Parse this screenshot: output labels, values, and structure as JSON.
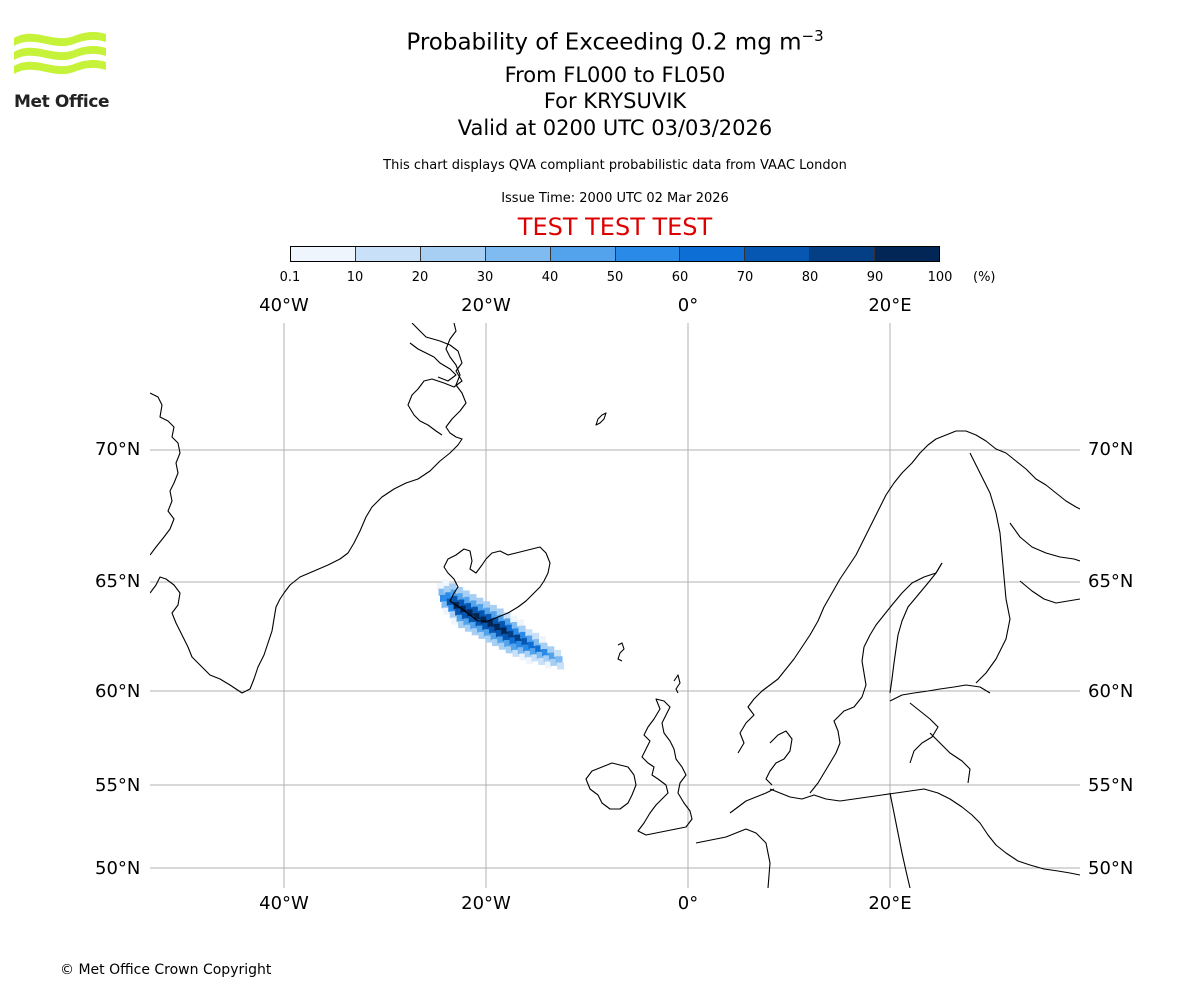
{
  "header": {
    "title_main": "Probability of Exceeding 0.2 mg m",
    "title_exponent": "−3",
    "title_levels": "From FL000 to FL050",
    "title_volcano": "For KRYSUVIK",
    "title_valid": "Valid at 0200 UTC 03/03/2026",
    "subtitle": "This chart displays QVA compliant probabilistic data from VAAC London",
    "issue_time": "Issue Time: 2000 UTC 02 Mar 2026",
    "test_banner": "TEST TEST TEST"
  },
  "logo": {
    "text": "Met Office",
    "color": "#c6f33a"
  },
  "colorbar": {
    "ticks": [
      "0.1",
      "10",
      "20",
      "30",
      "40",
      "50",
      "60",
      "70",
      "80",
      "90",
      "100"
    ],
    "unit": "(%)",
    "colors": [
      "#eef5fd",
      "#c9e1f8",
      "#a7cff4",
      "#7fbaf0",
      "#53a3ec",
      "#2a8ae8",
      "#0d6fd6",
      "#0557b2",
      "#043f85",
      "#022656"
    ]
  },
  "axes": {
    "lon_labels": [
      "40°W",
      "20°W",
      "0°",
      "20°E"
    ],
    "lat_labels": [
      "70°N",
      "65°N",
      "60°N",
      "55°N",
      "50°N"
    ]
  },
  "map": {
    "grid_color": "#b0b0b0",
    "coast_color": "#000000"
  },
  "footer": {
    "copyright": "© Met Office Crown Copyright"
  }
}
